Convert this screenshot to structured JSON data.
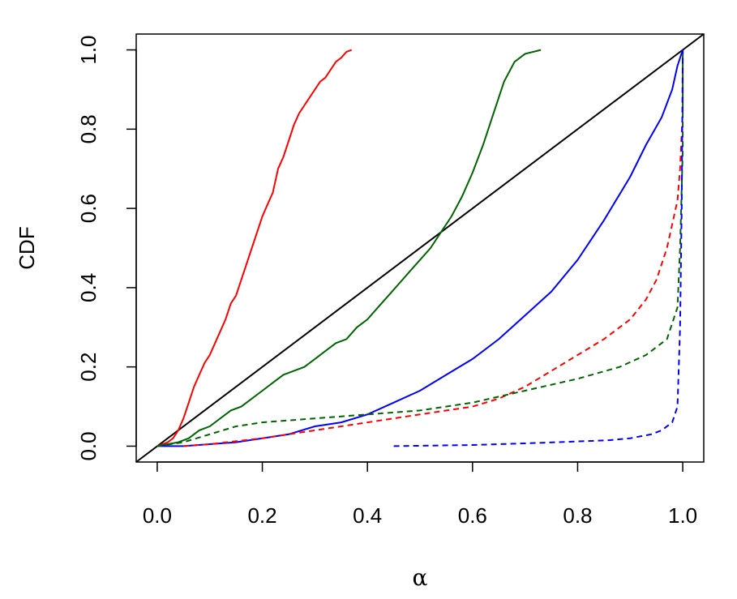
{
  "chart_data": {
    "type": "line",
    "title": "",
    "xlabel": "α",
    "ylabel": "CDF",
    "xlim": [
      -0.04,
      1.04
    ],
    "ylim": [
      -0.04,
      1.04
    ],
    "xticks": [
      "0.0",
      "0.2",
      "0.4",
      "0.6",
      "0.8",
      "1.0"
    ],
    "yticks": [
      "0.0",
      "0.2",
      "0.4",
      "0.6",
      "0.8",
      "1.0"
    ],
    "grid": false,
    "legend": "none",
    "series": [
      {
        "color": "#000000",
        "dash": false,
        "points": [
          [
            -0.04,
            -0.04
          ],
          [
            1.04,
            1.04
          ]
        ]
      },
      {
        "color": "#ff0000",
        "dash": false,
        "points": [
          [
            0.0,
            0.0
          ],
          [
            0.02,
            0.01
          ],
          [
            0.03,
            0.02
          ],
          [
            0.04,
            0.04
          ],
          [
            0.05,
            0.07
          ],
          [
            0.06,
            0.11
          ],
          [
            0.07,
            0.15
          ],
          [
            0.08,
            0.18
          ],
          [
            0.09,
            0.21
          ],
          [
            0.1,
            0.23
          ],
          [
            0.11,
            0.26
          ],
          [
            0.12,
            0.29
          ],
          [
            0.13,
            0.32
          ],
          [
            0.14,
            0.36
          ],
          [
            0.15,
            0.38
          ],
          [
            0.16,
            0.42
          ],
          [
            0.17,
            0.46
          ],
          [
            0.18,
            0.5
          ],
          [
            0.19,
            0.54
          ],
          [
            0.2,
            0.58
          ],
          [
            0.21,
            0.61
          ],
          [
            0.22,
            0.64
          ],
          [
            0.23,
            0.7
          ],
          [
            0.24,
            0.73
          ],
          [
            0.25,
            0.77
          ],
          [
            0.26,
            0.81
          ],
          [
            0.27,
            0.84
          ],
          [
            0.28,
            0.86
          ],
          [
            0.29,
            0.88
          ],
          [
            0.3,
            0.9
          ],
          [
            0.31,
            0.92
          ],
          [
            0.32,
            0.93
          ],
          [
            0.33,
            0.95
          ],
          [
            0.34,
            0.97
          ],
          [
            0.35,
            0.98
          ],
          [
            0.36,
            0.995
          ],
          [
            0.37,
            1.0
          ]
        ]
      },
      {
        "color": "#006400",
        "dash": false,
        "points": [
          [
            0.0,
            0.0
          ],
          [
            0.02,
            0.005
          ],
          [
            0.04,
            0.01
          ],
          [
            0.06,
            0.02
          ],
          [
            0.08,
            0.04
          ],
          [
            0.1,
            0.05
          ],
          [
            0.12,
            0.07
          ],
          [
            0.14,
            0.09
          ],
          [
            0.16,
            0.1
          ],
          [
            0.18,
            0.12
          ],
          [
            0.2,
            0.14
          ],
          [
            0.22,
            0.16
          ],
          [
            0.24,
            0.18
          ],
          [
            0.26,
            0.19
          ],
          [
            0.28,
            0.2
          ],
          [
            0.3,
            0.22
          ],
          [
            0.32,
            0.24
          ],
          [
            0.34,
            0.26
          ],
          [
            0.36,
            0.27
          ],
          [
            0.38,
            0.3
          ],
          [
            0.4,
            0.32
          ],
          [
            0.42,
            0.35
          ],
          [
            0.44,
            0.38
          ],
          [
            0.46,
            0.41
          ],
          [
            0.48,
            0.44
          ],
          [
            0.5,
            0.47
          ],
          [
            0.52,
            0.5
          ],
          [
            0.54,
            0.54
          ],
          [
            0.56,
            0.58
          ],
          [
            0.58,
            0.63
          ],
          [
            0.6,
            0.69
          ],
          [
            0.62,
            0.76
          ],
          [
            0.64,
            0.84
          ],
          [
            0.66,
            0.92
          ],
          [
            0.68,
            0.97
          ],
          [
            0.7,
            0.99
          ],
          [
            0.73,
            1.0
          ]
        ]
      },
      {
        "color": "#0000ff",
        "dash": false,
        "points": [
          [
            0.0,
            0.0
          ],
          [
            0.05,
            0.0
          ],
          [
            0.1,
            0.005
          ],
          [
            0.15,
            0.01
          ],
          [
            0.2,
            0.02
          ],
          [
            0.25,
            0.03
          ],
          [
            0.3,
            0.05
          ],
          [
            0.35,
            0.06
          ],
          [
            0.4,
            0.08
          ],
          [
            0.45,
            0.11
          ],
          [
            0.5,
            0.14
          ],
          [
            0.55,
            0.18
          ],
          [
            0.6,
            0.22
          ],
          [
            0.65,
            0.27
          ],
          [
            0.7,
            0.33
          ],
          [
            0.75,
            0.39
          ],
          [
            0.8,
            0.47
          ],
          [
            0.85,
            0.57
          ],
          [
            0.9,
            0.68
          ],
          [
            0.93,
            0.76
          ],
          [
            0.96,
            0.83
          ],
          [
            0.98,
            0.9
          ],
          [
            0.99,
            0.96
          ],
          [
            1.0,
            1.0
          ]
        ]
      },
      {
        "color": "#ff0000",
        "dash": true,
        "points": [
          [
            0.05,
            0.0
          ],
          [
            0.1,
            0.005
          ],
          [
            0.2,
            0.02
          ],
          [
            0.3,
            0.04
          ],
          [
            0.4,
            0.06
          ],
          [
            0.5,
            0.08
          ],
          [
            0.6,
            0.1
          ],
          [
            0.65,
            0.12
          ],
          [
            0.7,
            0.15
          ],
          [
            0.75,
            0.19
          ],
          [
            0.8,
            0.23
          ],
          [
            0.85,
            0.27
          ],
          [
            0.9,
            0.32
          ],
          [
            0.93,
            0.37
          ],
          [
            0.95,
            0.42
          ],
          [
            0.97,
            0.5
          ],
          [
            0.98,
            0.56
          ],
          [
            0.99,
            0.62
          ],
          [
            0.995,
            0.7
          ],
          [
            1.0,
            0.85
          ],
          [
            1.0,
            1.0
          ]
        ]
      },
      {
        "color": "#006400",
        "dash": true,
        "points": [
          [
            0.0,
            0.0
          ],
          [
            0.05,
            0.01
          ],
          [
            0.1,
            0.03
          ],
          [
            0.15,
            0.05
          ],
          [
            0.2,
            0.06
          ],
          [
            0.3,
            0.07
          ],
          [
            0.4,
            0.08
          ],
          [
            0.5,
            0.09
          ],
          [
            0.6,
            0.11
          ],
          [
            0.7,
            0.14
          ],
          [
            0.8,
            0.17
          ],
          [
            0.88,
            0.2
          ],
          [
            0.93,
            0.23
          ],
          [
            0.97,
            0.27
          ],
          [
            0.99,
            0.35
          ],
          [
            0.995,
            0.5
          ],
          [
            1.0,
            0.75
          ],
          [
            1.0,
            1.0
          ]
        ]
      },
      {
        "color": "#0000ff",
        "dash": true,
        "points": [
          [
            0.45,
            0.0
          ],
          [
            0.6,
            0.003
          ],
          [
            0.7,
            0.007
          ],
          [
            0.8,
            0.012
          ],
          [
            0.86,
            0.015
          ],
          [
            0.9,
            0.02
          ],
          [
            0.94,
            0.03
          ],
          [
            0.96,
            0.04
          ],
          [
            0.98,
            0.06
          ],
          [
            0.99,
            0.1
          ],
          [
            0.995,
            0.3
          ],
          [
            0.998,
            0.6
          ],
          [
            1.0,
            1.0
          ]
        ]
      }
    ]
  }
}
